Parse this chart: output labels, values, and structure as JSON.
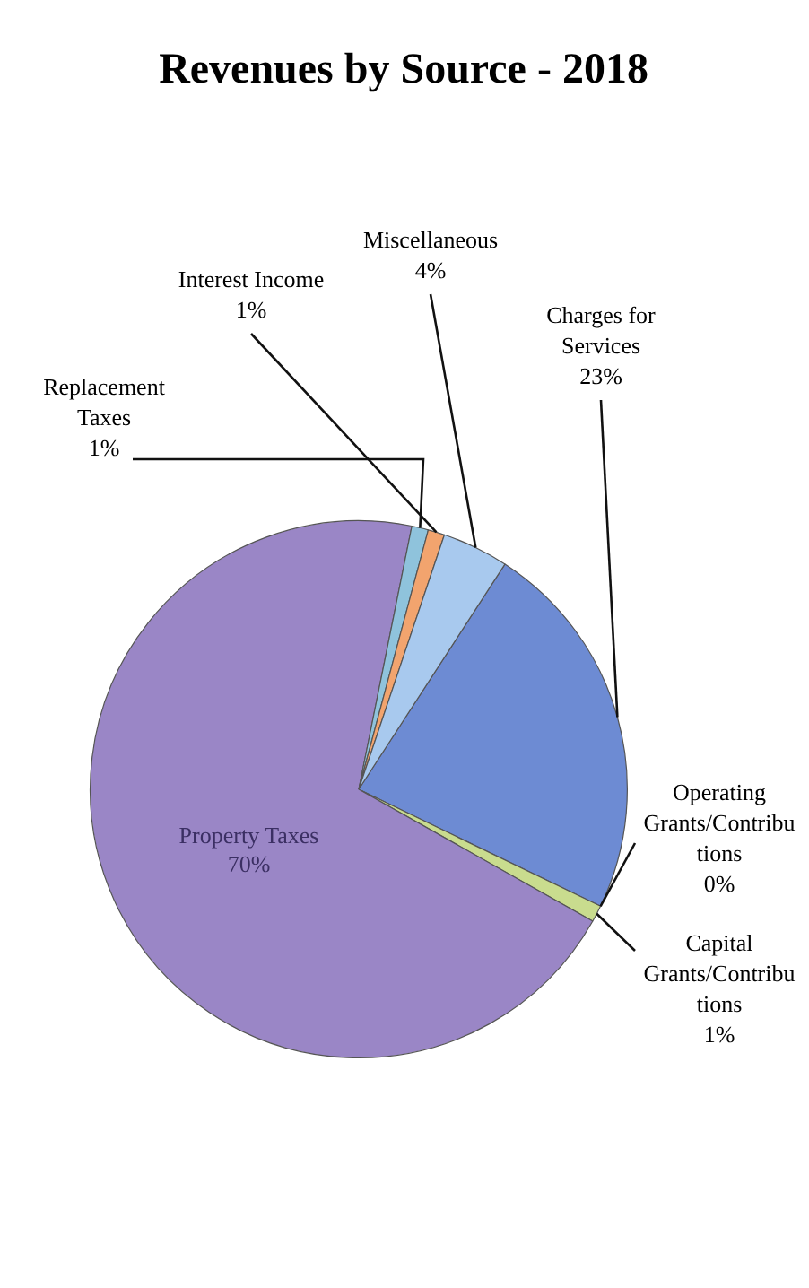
{
  "chart_data": {
    "type": "pie",
    "title": "Revenues by Source - 2018",
    "categories": [
      "Charges for Services",
      "Operating Grants/Contributions",
      "Capital Grants/Contributions",
      "Property Taxes",
      "Replacement Taxes",
      "Interest Income",
      "Miscellaneous"
    ],
    "values": [
      23,
      0,
      1,
      70,
      1,
      1,
      4
    ],
    "colors": [
      "#6d8bd3",
      "#9aa0a8",
      "#c9dc8e",
      "#9a86c6",
      "#8fc3dc",
      "#f2a46e",
      "#a8c9ee"
    ],
    "value_labels": [
      "23%",
      "0%",
      "1%",
      "70%",
      "1%",
      "1%",
      "4%"
    ],
    "legend": false
  }
}
